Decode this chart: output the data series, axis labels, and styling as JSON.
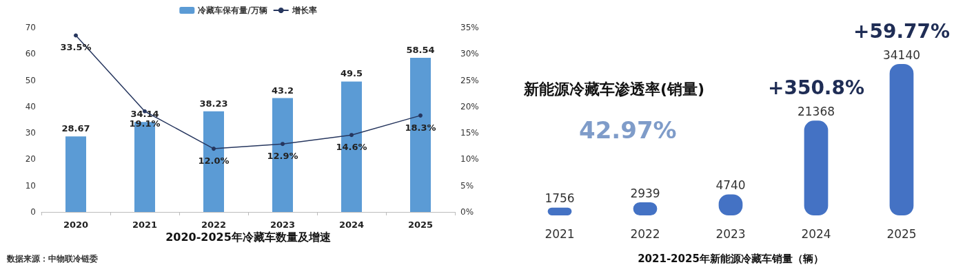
{
  "chart_data": [
    {
      "type": "bar",
      "title": "2020-2025年冷藏车数量及增速",
      "categories": [
        "2020",
        "2021",
        "2022",
        "2023",
        "2024",
        "2025"
      ],
      "series": [
        {
          "name": "冷藏车保有量/万辆",
          "color": "#5b9bd5",
          "values": [
            28.67,
            34.14,
            38.23,
            43.2,
            49.5,
            58.54
          ],
          "value_labels": [
            "28.67",
            "34.14",
            "38.23",
            "43.2",
            "49.5",
            "58.54"
          ]
        },
        {
          "name": "增长率",
          "type": "line",
          "axis": "y2",
          "color": "#26365e",
          "values": [
            33.5,
            19.1,
            12.0,
            12.9,
            14.6,
            18.3
          ],
          "value_labels": [
            "33.5%",
            "19.1%",
            "12.0%",
            "12.9%",
            "14.6%",
            "18.3%"
          ]
        }
      ],
      "ylim": [
        0,
        70
      ],
      "yticks": [
        0,
        10,
        20,
        30,
        40,
        50,
        60,
        70
      ],
      "y2lim": [
        0,
        35
      ],
      "y2ticks": [
        {
          "value": 0,
          "label": "0%"
        },
        {
          "value": 5,
          "label": "5%"
        },
        {
          "value": 10,
          "label": "10%"
        },
        {
          "value": 15,
          "label": "15%"
        },
        {
          "value": 20,
          "label": "20%"
        },
        {
          "value": 25,
          "label": "25%"
        },
        {
          "value": 30,
          "label": "30%"
        },
        {
          "value": 35,
          "label": "35%"
        }
      ],
      "legend": "top",
      "marker": "circle",
      "line_style": "solid",
      "annotations": [
        "数据来源：中物联冷链委"
      ]
    },
    {
      "type": "bar",
      "xlabel": "2021-2025年新能源冷藏车销量（辆）",
      "categories": [
        "2021",
        "2022",
        "2023",
        "2024",
        "2025"
      ],
      "values": [
        1756,
        2939,
        4740,
        21368,
        34140
      ],
      "color": "#4472c4",
      "data_labels": true,
      "annotations": [
        "新能源冷藏车渗透率(销量)",
        "42.97%",
        "+350.8%",
        "+59.77%"
      ]
    }
  ]
}
